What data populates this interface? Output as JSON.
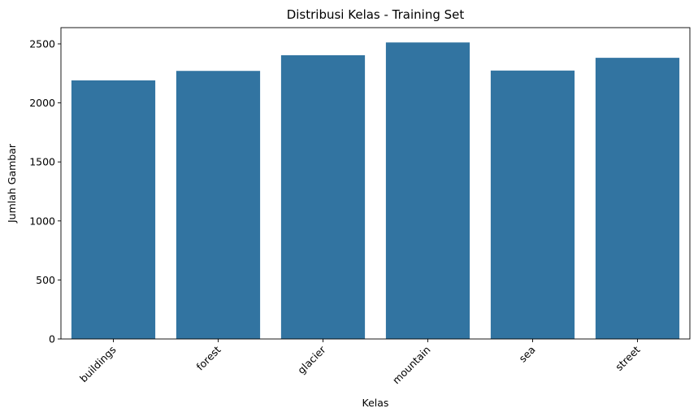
{
  "chart_data": {
    "type": "bar",
    "title": "Distribusi Kelas - Training Set",
    "xlabel": "Kelas",
    "ylabel": "Jumlah Gambar",
    "categories": [
      "buildings",
      "forest",
      "glacier",
      "mountain",
      "sea",
      "street"
    ],
    "values": [
      2191,
      2271,
      2404,
      2512,
      2274,
      2382
    ],
    "ylim": [
      0,
      2637.6
    ],
    "yticks": [
      0,
      500,
      1000,
      1500,
      2000,
      2500
    ],
    "xtick_rotation": 45,
    "grid": false,
    "bar_color": "#3274a1"
  }
}
